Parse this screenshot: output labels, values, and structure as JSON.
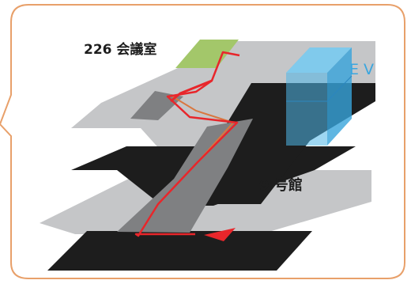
{
  "labels": {
    "room": "226 会議室",
    "elevator": "E V",
    "building": "9 号館"
  },
  "colors": {
    "border": "#e8a06a",
    "floor_light": "#c5c6c8",
    "floor_mid": "#7f8082",
    "floor_dark": "#1d1d1d",
    "room_highlight": "#a3c76a",
    "elevator": "#4fb6e8",
    "elevator_text": "#3aa6df",
    "route": "#e8262b",
    "route_inner": "#d9773f"
  },
  "icons": {
    "route_arrow": "triangle-arrow-icon"
  }
}
